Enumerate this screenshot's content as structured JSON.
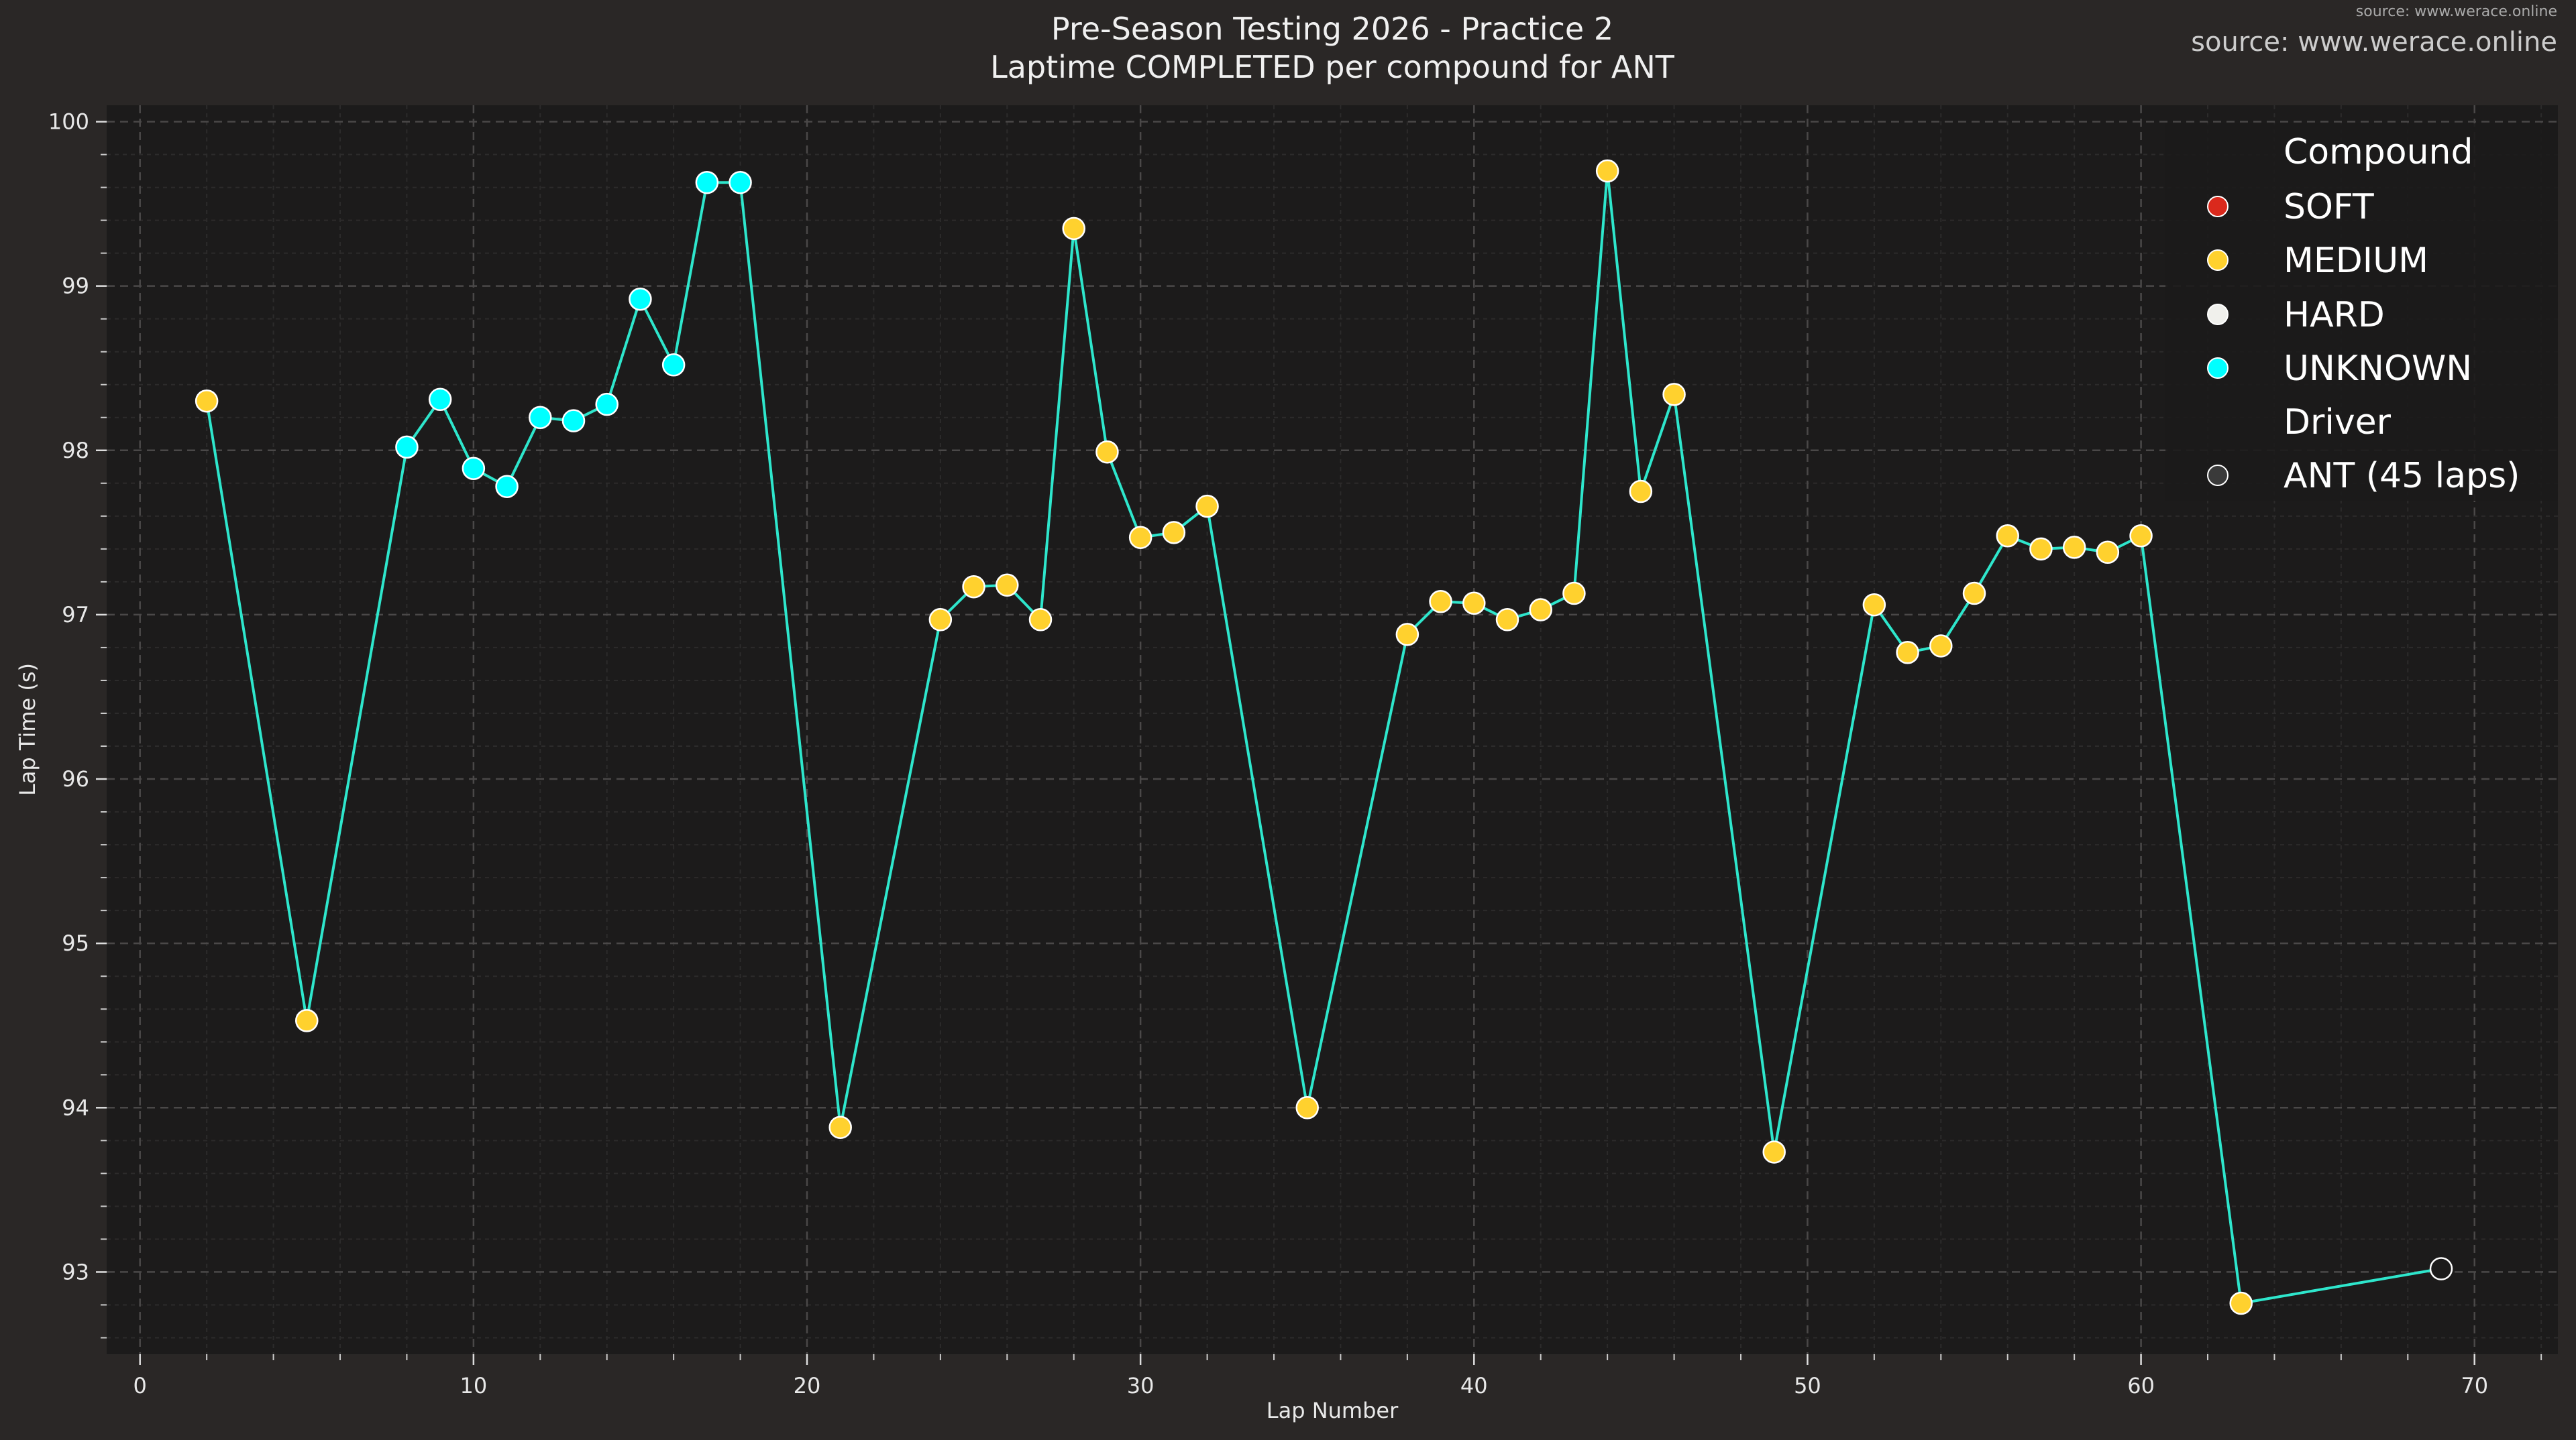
{
  "source_text": "source: www.werace.online",
  "chart_data": {
    "type": "scatter",
    "title": "Pre-Season Testing 2026 - Practice 2",
    "subtitle": "Laptime COMPLETED per compound for ANT",
    "xlabel": "Lap Number",
    "ylabel": "Lap Time (s)",
    "xlim": [
      -1,
      72.5
    ],
    "ylim": [
      92.5,
      100.1
    ],
    "xticks": [
      0,
      10,
      20,
      30,
      40,
      50,
      60,
      70
    ],
    "yticks": [
      93,
      94,
      95,
      96,
      97,
      98,
      99,
      100
    ],
    "grid": true,
    "line_color": "#2ee6cc",
    "compound_colors": {
      "SOFT": "#da291c",
      "MEDIUM": "#ffd12e",
      "HARD": "#f0f0ec",
      "UNKNOWN": "#00ffff",
      "NONE": "#1c1b1b"
    },
    "legend": {
      "placement": "top-right",
      "compound_title": "Compound",
      "compounds": [
        "SOFT",
        "MEDIUM",
        "HARD",
        "UNKNOWN"
      ],
      "driver_title": "Driver",
      "driver_entry": "ANT (45 laps)"
    },
    "points": [
      {
        "lap": 2,
        "time": 98.3,
        "compound": "MEDIUM"
      },
      {
        "lap": 5,
        "time": 94.53,
        "compound": "MEDIUM"
      },
      {
        "lap": 8,
        "time": 98.02,
        "compound": "UNKNOWN"
      },
      {
        "lap": 9,
        "time": 98.31,
        "compound": "UNKNOWN"
      },
      {
        "lap": 10,
        "time": 97.89,
        "compound": "UNKNOWN"
      },
      {
        "lap": 11,
        "time": 97.78,
        "compound": "UNKNOWN"
      },
      {
        "lap": 12,
        "time": 98.2,
        "compound": "UNKNOWN"
      },
      {
        "lap": 13,
        "time": 98.18,
        "compound": "UNKNOWN"
      },
      {
        "lap": 14,
        "time": 98.28,
        "compound": "UNKNOWN"
      },
      {
        "lap": 15,
        "time": 98.92,
        "compound": "UNKNOWN"
      },
      {
        "lap": 16,
        "time": 98.52,
        "compound": "UNKNOWN"
      },
      {
        "lap": 17,
        "time": 99.63,
        "compound": "UNKNOWN"
      },
      {
        "lap": 18,
        "time": 99.63,
        "compound": "UNKNOWN"
      },
      {
        "lap": 21,
        "time": 93.88,
        "compound": "MEDIUM"
      },
      {
        "lap": 24,
        "time": 96.97,
        "compound": "MEDIUM"
      },
      {
        "lap": 25,
        "time": 97.17,
        "compound": "MEDIUM"
      },
      {
        "lap": 26,
        "time": 97.18,
        "compound": "MEDIUM"
      },
      {
        "lap": 27,
        "time": 96.97,
        "compound": "MEDIUM"
      },
      {
        "lap": 28,
        "time": 99.35,
        "compound": "MEDIUM"
      },
      {
        "lap": 29,
        "time": 97.99,
        "compound": "MEDIUM"
      },
      {
        "lap": 30,
        "time": 97.47,
        "compound": "MEDIUM"
      },
      {
        "lap": 31,
        "time": 97.5,
        "compound": "MEDIUM"
      },
      {
        "lap": 32,
        "time": 97.66,
        "compound": "MEDIUM"
      },
      {
        "lap": 35,
        "time": 94.0,
        "compound": "MEDIUM"
      },
      {
        "lap": 38,
        "time": 96.88,
        "compound": "MEDIUM"
      },
      {
        "lap": 39,
        "time": 97.08,
        "compound": "MEDIUM"
      },
      {
        "lap": 40,
        "time": 97.07,
        "compound": "MEDIUM"
      },
      {
        "lap": 41,
        "time": 96.97,
        "compound": "MEDIUM"
      },
      {
        "lap": 42,
        "time": 97.03,
        "compound": "MEDIUM"
      },
      {
        "lap": 43,
        "time": 97.13,
        "compound": "MEDIUM"
      },
      {
        "lap": 44,
        "time": 99.7,
        "compound": "MEDIUM"
      },
      {
        "lap": 45,
        "time": 97.75,
        "compound": "MEDIUM"
      },
      {
        "lap": 46,
        "time": 98.34,
        "compound": "MEDIUM"
      },
      {
        "lap": 49,
        "time": 93.73,
        "compound": "MEDIUM"
      },
      {
        "lap": 52,
        "time": 97.06,
        "compound": "MEDIUM"
      },
      {
        "lap": 53,
        "time": 96.77,
        "compound": "MEDIUM"
      },
      {
        "lap": 54,
        "time": 96.81,
        "compound": "MEDIUM"
      },
      {
        "lap": 55,
        "time": 97.13,
        "compound": "MEDIUM"
      },
      {
        "lap": 56,
        "time": 97.48,
        "compound": "MEDIUM"
      },
      {
        "lap": 57,
        "time": 97.4,
        "compound": "MEDIUM"
      },
      {
        "lap": 58,
        "time": 97.41,
        "compound": "MEDIUM"
      },
      {
        "lap": 59,
        "time": 97.38,
        "compound": "MEDIUM"
      },
      {
        "lap": 60,
        "time": 97.48,
        "compound": "MEDIUM"
      },
      {
        "lap": 63,
        "time": 92.81,
        "compound": "MEDIUM"
      },
      {
        "lap": 69,
        "time": 93.02,
        "compound": "NONE"
      }
    ]
  }
}
